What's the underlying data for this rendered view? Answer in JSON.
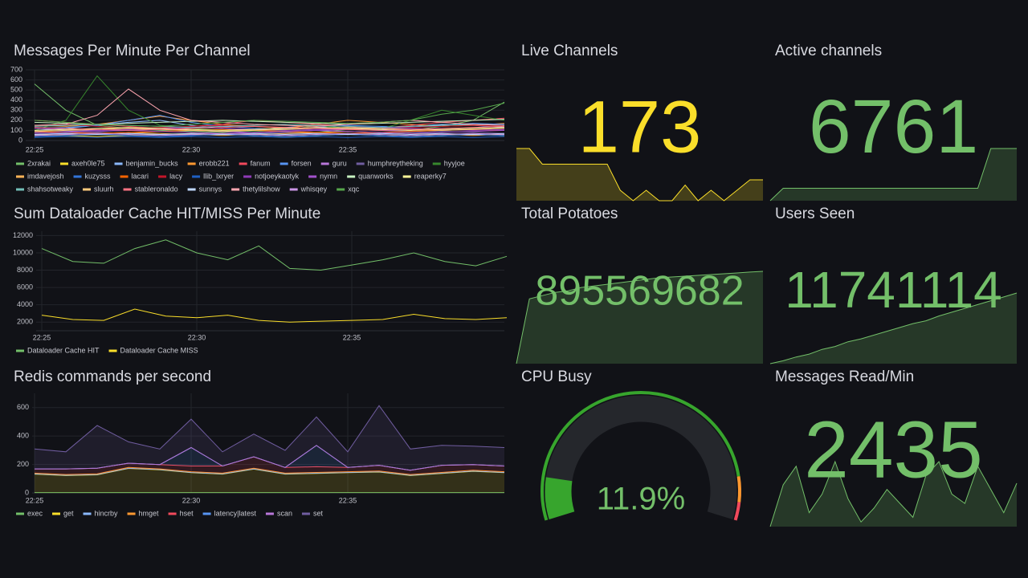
{
  "chart_data": [
    {
      "type": "line",
      "title": "Messages Per Minute Per Channel",
      "categories": [
        "22:25",
        null,
        null,
        null,
        null,
        "22:30",
        null,
        null,
        null,
        null,
        "22:35",
        null,
        null,
        null,
        null,
        null
      ],
      "ylim": [
        0,
        700
      ],
      "yticks": [
        0,
        100,
        200,
        300,
        400,
        500,
        600,
        700
      ],
      "grid": true,
      "legend": "bottom",
      "series": [
        {
          "name": "2xrakai",
          "color": "#73bf69",
          "values": [
            560,
            300,
            150,
            120,
            100,
            90,
            80,
            100,
            90,
            80,
            110,
            120,
            100,
            140,
            200,
            380
          ]
        },
        {
          "name": "axeh0le75",
          "color": "#fade2a",
          "values": [
            60,
            50,
            40,
            50,
            60,
            70,
            60,
            50,
            40,
            50,
            60,
            50,
            40,
            50,
            60,
            50
          ]
        },
        {
          "name": "benjamin_bucks",
          "color": "#8ab8ff",
          "values": [
            100,
            120,
            150,
            180,
            200,
            150,
            120,
            100,
            130,
            150,
            120,
            110,
            140,
            160,
            150,
            130
          ]
        },
        {
          "name": "erobb221",
          "color": "#ff9830",
          "values": [
            150,
            140,
            160,
            200,
            240,
            200,
            160,
            140,
            120,
            160,
            200,
            180,
            160,
            140,
            150,
            170
          ]
        },
        {
          "name": "fanum",
          "color": "#f2495c",
          "values": [
            200,
            180,
            160,
            140,
            120,
            140,
            160,
            200,
            180,
            160,
            140,
            120,
            150,
            180,
            200,
            220
          ]
        },
        {
          "name": "forsen",
          "color": "#5794f2",
          "values": [
            120,
            130,
            150,
            200,
            250,
            180,
            140,
            120,
            110,
            130,
            150,
            140,
            130,
            150,
            170,
            160
          ]
        },
        {
          "name": "guru",
          "color": "#b877d9",
          "values": [
            80,
            90,
            100,
            110,
            120,
            100,
            90,
            80,
            90,
            100,
            110,
            100,
            90,
            100,
            110,
            100
          ]
        },
        {
          "name": "humphreytheking",
          "color": "#705da0",
          "values": [
            60,
            70,
            80,
            70,
            60,
            50,
            60,
            70,
            80,
            70,
            60,
            70,
            80,
            90,
            80,
            70
          ]
        },
        {
          "name": "hyyjoe",
          "color": "#37872d",
          "values": [
            100,
            200,
            640,
            300,
            150,
            120,
            100,
            90,
            100,
            150,
            120,
            110,
            200,
            300,
            250,
            200
          ]
        },
        {
          "name": "imdavejosh",
          "color": "#ffb357",
          "values": [
            50,
            60,
            70,
            80,
            70,
            60,
            50,
            60,
            70,
            80,
            90,
            80,
            70,
            60,
            50,
            60
          ]
        },
        {
          "name": "kuzysss",
          "color": "#3274d9",
          "values": [
            40,
            50,
            60,
            50,
            40,
            50,
            60,
            50,
            40,
            50,
            60,
            50,
            40,
            50,
            60,
            50
          ]
        },
        {
          "name": "lacari",
          "color": "#fa6400",
          "values": [
            90,
            80,
            70,
            80,
            90,
            100,
            110,
            100,
            90,
            80,
            70,
            80,
            90,
            100,
            110,
            100
          ]
        },
        {
          "name": "lacy",
          "color": "#c4162a",
          "values": [
            150,
            160,
            140,
            120,
            130,
            140,
            150,
            140,
            130,
            120,
            110,
            120,
            130,
            140,
            150,
            140
          ]
        },
        {
          "name": "llib_lxryer",
          "color": "#1f60c4",
          "values": [
            30,
            40,
            30,
            40,
            30,
            40,
            30,
            40,
            30,
            40,
            30,
            40,
            30,
            40,
            30,
            40
          ]
        },
        {
          "name": "notjoeykaotyk",
          "color": "#8f3bb8",
          "values": [
            120,
            110,
            100,
            110,
            120,
            130,
            120,
            110,
            100,
            110,
            120,
            130,
            120,
            110,
            100,
            110
          ]
        },
        {
          "name": "nymn",
          "color": "#a352cc",
          "values": [
            70,
            80,
            90,
            100,
            90,
            80,
            70,
            80,
            90,
            100,
            90,
            80,
            70,
            80,
            90,
            100
          ]
        },
        {
          "name": "quanworks",
          "color": "#c8f2c2",
          "values": [
            180,
            170,
            160,
            170,
            180,
            190,
            200,
            190,
            180,
            170,
            160,
            170,
            180,
            190,
            200,
            210
          ]
        },
        {
          "name": "reaperky7",
          "color": "#fff899",
          "values": [
            100,
            110,
            120,
            130,
            120,
            110,
            100,
            110,
            120,
            130,
            120,
            110,
            100,
            110,
            120,
            130
          ]
        },
        {
          "name": "shahsotweaky",
          "color": "#73bfb8",
          "values": [
            140,
            150,
            160,
            150,
            140,
            130,
            140,
            150,
            160,
            150,
            140,
            130,
            140,
            150,
            160,
            150
          ]
        },
        {
          "name": "sluurh",
          "color": "#ffcb7d",
          "values": [
            90,
            100,
            110,
            120,
            110,
            100,
            90,
            100,
            110,
            120,
            130,
            120,
            110,
            100,
            110,
            120
          ]
        },
        {
          "name": "stableronaldo",
          "color": "#ff7383",
          "values": [
            130,
            120,
            110,
            100,
            110,
            120,
            130,
            140,
            130,
            120,
            110,
            100,
            110,
            120,
            130,
            140
          ]
        },
        {
          "name": "sunnys",
          "color": "#c0d8ff",
          "values": [
            60,
            70,
            60,
            70,
            60,
            70,
            60,
            70,
            60,
            70,
            60,
            70,
            60,
            70,
            60,
            70
          ]
        },
        {
          "name": "thetylilshow",
          "color": "#ffa6b0",
          "values": [
            150,
            160,
            250,
            510,
            300,
            200,
            180,
            160,
            150,
            140,
            160,
            180,
            200,
            180,
            160,
            150
          ]
        },
        {
          "name": "whisqey",
          "color": "#ca95e5",
          "values": [
            50,
            60,
            70,
            60,
            50,
            60,
            70,
            60,
            50,
            60,
            70,
            60,
            50,
            60,
            70,
            60
          ]
        },
        {
          "name": "xqc",
          "color": "#56a64b",
          "values": [
            200,
            180,
            160,
            150,
            140,
            160,
            180,
            200,
            190,
            180,
            170,
            180,
            200,
            260,
            300,
            370
          ]
        }
      ]
    },
    {
      "type": "line",
      "title": "Sum Dataloader Cache HIT/MISS Per Minute",
      "categories": [
        "22:25",
        null,
        null,
        null,
        null,
        "22:30",
        null,
        null,
        null,
        null,
        "22:35",
        null,
        null,
        null,
        null,
        null
      ],
      "ylim": [
        1000,
        12500
      ],
      "yticks": [
        2000,
        4000,
        6000,
        8000,
        10000,
        12000
      ],
      "grid": true,
      "legend": "bottom",
      "series": [
        {
          "name": "Dataloader Cache HIT",
          "color": "#73bf69",
          "values": [
            10500,
            9000,
            8800,
            10500,
            11500,
            10000,
            9200,
            10800,
            8200,
            8000,
            8600,
            9200,
            10000,
            9000,
            8500,
            9600
          ]
        },
        {
          "name": "Dataloader Cache MISS",
          "color": "#fade2a",
          "values": [
            2800,
            2300,
            2200,
            3500,
            2700,
            2500,
            2800,
            2200,
            2000,
            2100,
            2200,
            2300,
            2900,
            2400,
            2300,
            2500
          ]
        }
      ]
    },
    {
      "type": "area",
      "stacked": true,
      "title": "Redis commands per second",
      "categories": [
        "22:25",
        null,
        null,
        null,
        null,
        "22:30",
        null,
        null,
        null,
        null,
        "22:35",
        null,
        null,
        null,
        null,
        null
      ],
      "ylim": [
        0,
        700
      ],
      "yticks": [
        0,
        200,
        400,
        600
      ],
      "grid": true,
      "legend": "bottom",
      "series": [
        {
          "name": "exec",
          "color": "#73bf69",
          "values": [
            2,
            2,
            2,
            2,
            2,
            2,
            2,
            2,
            2,
            2,
            2,
            2,
            2,
            2,
            2,
            2
          ]
        },
        {
          "name": "get",
          "color": "#fade2a",
          "values": [
            130,
            120,
            125,
            170,
            160,
            140,
            130,
            165,
            130,
            135,
            140,
            145,
            120,
            135,
            150,
            140
          ]
        },
        {
          "name": "hincrby",
          "color": "#8ab8ff",
          "values": [
            2,
            2,
            2,
            2,
            2,
            2,
            2,
            2,
            2,
            2,
            2,
            2,
            2,
            2,
            2,
            2
          ]
        },
        {
          "name": "hmget",
          "color": "#ff9830",
          "values": [
            5,
            5,
            5,
            5,
            5,
            5,
            5,
            5,
            5,
            5,
            5,
            5,
            5,
            5,
            5,
            5
          ]
        },
        {
          "name": "hset",
          "color": "#f2495c",
          "values": [
            30,
            40,
            40,
            30,
            30,
            40,
            50,
            80,
            40,
            40,
            30,
            40,
            30,
            50,
            40,
            40
          ]
        },
        {
          "name": "latency|latest",
          "color": "#5794f2",
          "values": [
            0,
            0,
            0,
            0,
            0,
            130,
            0,
            0,
            0,
            150,
            0,
            0,
            0,
            0,
            0,
            0
          ]
        },
        {
          "name": "scan",
          "color": "#b877d9",
          "values": [
            0,
            0,
            0,
            0,
            0,
            0,
            0,
            0,
            0,
            0,
            0,
            0,
            0,
            0,
            0,
            0
          ]
        },
        {
          "name": "set",
          "color": "#705da0",
          "values": [
            140,
            120,
            300,
            150,
            110,
            200,
            100,
            160,
            120,
            200,
            110,
            420,
            150,
            140,
            130,
            130
          ]
        }
      ]
    },
    {
      "type": "stat",
      "title": "Live Channels",
      "value": 173,
      "color": "#fade2a",
      "sparkline": [
        178,
        178,
        175,
        175,
        175,
        175,
        175,
        175,
        170,
        168,
        170,
        168,
        168,
        171,
        168,
        170,
        168,
        170,
        172,
        172
      ]
    },
    {
      "type": "stat",
      "title": "Active channels",
      "value": 6761,
      "color": "#73bf69",
      "sparkline": [
        6740,
        6745,
        6745,
        6745,
        6745,
        6745,
        6745,
        6745,
        6745,
        6745,
        6745,
        6745,
        6745,
        6745,
        6745,
        6745,
        6745,
        6761,
        6761,
        6761
      ]
    },
    {
      "type": "stat",
      "title": "Total Potatoes",
      "value": 895569682,
      "color": "#73bf69",
      "sparkline": [
        895000000,
        895400000,
        895420000,
        895440000,
        895450000,
        895470000,
        895480000,
        895490000,
        895500000,
        895510000,
        895520000,
        895530000,
        895535000,
        895540000,
        895545000,
        895550000,
        895555000,
        895560000,
        895565000,
        895569682
      ]
    },
    {
      "type": "stat",
      "title": "Users Seen",
      "value": 11741114,
      "color": "#73bf69",
      "sparkline": [
        11000000,
        11030000,
        11070000,
        11100000,
        11150000,
        11180000,
        11230000,
        11260000,
        11300000,
        11340000,
        11380000,
        11420000,
        11450000,
        11500000,
        11540000,
        11580000,
        11620000,
        11660000,
        11700000,
        11741114
      ]
    },
    {
      "type": "gauge",
      "title": "CPU Busy",
      "value": 11.9,
      "value_label": "11.9%",
      "ylim": [
        0,
        100
      ],
      "color": "#37a52d"
    },
    {
      "type": "stat",
      "title": "Messages Read/Min",
      "value": 2435,
      "color": "#73bf69",
      "sparkline": [
        1500,
        2400,
        2800,
        1800,
        2200,
        2900,
        2100,
        1600,
        1900,
        2300,
        2000,
        1700,
        2600,
        2900,
        2200,
        2000,
        2800,
        2300,
        1800,
        2435
      ]
    }
  ]
}
